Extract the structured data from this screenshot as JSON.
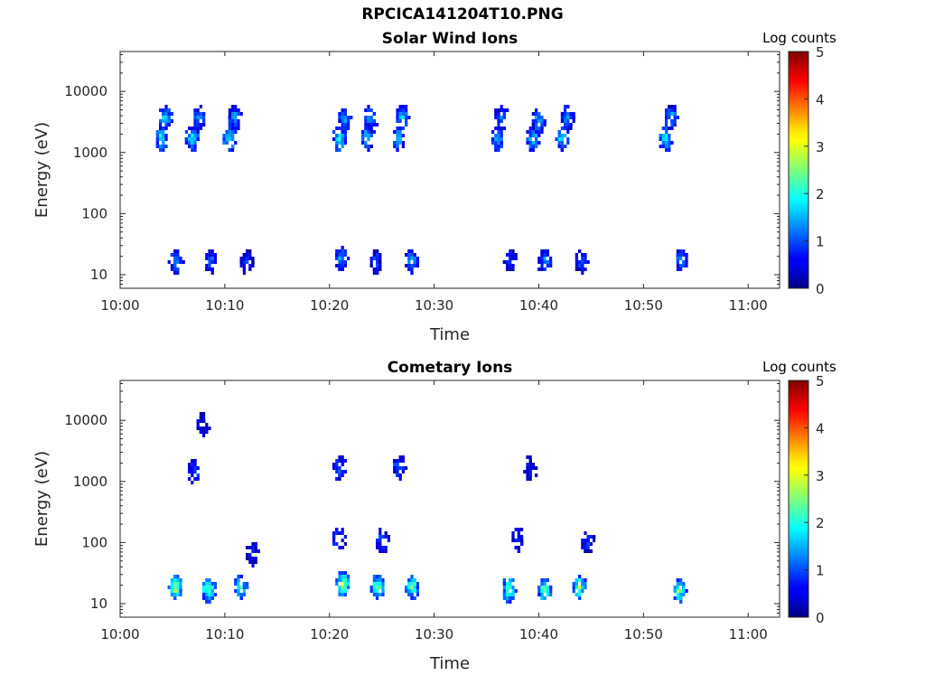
{
  "figure": {
    "title": "RPCICA141204T10.PNG"
  },
  "colorbar": {
    "label": "Log counts",
    "ticks": [
      "0",
      "1",
      "2",
      "3",
      "4",
      "5"
    ],
    "range": [
      0,
      5
    ],
    "colormap": "jet"
  },
  "chart_data": [
    {
      "type": "heatmap",
      "title": "Solar Wind Ions",
      "xlabel": "Time",
      "ylabel": "Energy (eV)",
      "yscale": "log",
      "ylim": [
        6,
        45000
      ],
      "xlim": [
        "10:00",
        "11:03"
      ],
      "xticks": [
        "10:00",
        "10:10",
        "10:20",
        "10:30",
        "10:40",
        "10:50",
        "11:00"
      ],
      "yticks": [
        "10",
        "100",
        "1000",
        "10000"
      ],
      "colorbar_label": "Log counts",
      "clim": [
        0,
        5
      ],
      "clusters": [
        {
          "t": 3.8,
          "e": 1800,
          "v": 2.2
        },
        {
          "t": 4.2,
          "e": 4000,
          "v": 1.8
        },
        {
          "t": 6.8,
          "e": 1800,
          "v": 2.0
        },
        {
          "t": 7.4,
          "e": 3800,
          "v": 1.6
        },
        {
          "t": 10.3,
          "e": 1800,
          "v": 2.0
        },
        {
          "t": 10.8,
          "e": 4000,
          "v": 1.7
        },
        {
          "t": 20.8,
          "e": 1800,
          "v": 2.4
        },
        {
          "t": 21.3,
          "e": 3500,
          "v": 1.6
        },
        {
          "t": 23.5,
          "e": 1800,
          "v": 1.9
        },
        {
          "t": 23.8,
          "e": 4000,
          "v": 1.6
        },
        {
          "t": 26.5,
          "e": 1800,
          "v": 2.0
        },
        {
          "t": 26.9,
          "e": 4000,
          "v": 1.7
        },
        {
          "t": 35.9,
          "e": 1800,
          "v": 1.8
        },
        {
          "t": 36.3,
          "e": 4000,
          "v": 1.3
        },
        {
          "t": 39.3,
          "e": 1800,
          "v": 1.9
        },
        {
          "t": 39.8,
          "e": 3500,
          "v": 1.6
        },
        {
          "t": 42.1,
          "e": 1800,
          "v": 1.9
        },
        {
          "t": 42.6,
          "e": 4000,
          "v": 1.6
        },
        {
          "t": 52.0,
          "e": 1800,
          "v": 2.0
        },
        {
          "t": 52.5,
          "e": 4000,
          "v": 1.6
        },
        {
          "t": 5.2,
          "e": 18,
          "v": 1.5
        },
        {
          "t": 8.5,
          "e": 18,
          "v": 1.2
        },
        {
          "t": 12.0,
          "e": 18,
          "v": 1.0
        },
        {
          "t": 21.0,
          "e": 20,
          "v": 1.5
        },
        {
          "t": 24.3,
          "e": 18,
          "v": 1.1
        },
        {
          "t": 27.7,
          "e": 18,
          "v": 1.5
        },
        {
          "t": 37.2,
          "e": 18,
          "v": 1.0
        },
        {
          "t": 40.5,
          "e": 18,
          "v": 1.5
        },
        {
          "t": 43.9,
          "e": 18,
          "v": 1.2
        },
        {
          "t": 53.5,
          "e": 18,
          "v": 1.5
        }
      ]
    },
    {
      "type": "heatmap",
      "title": "Cometary Ions",
      "xlabel": "Time",
      "ylabel": "Energy (eV)",
      "yscale": "log",
      "ylim": [
        6,
        45000
      ],
      "xlim": [
        "10:00",
        "11:03"
      ],
      "xticks": [
        "10:00",
        "10:10",
        "10:20",
        "10:30",
        "10:40",
        "10:50",
        "11:00"
      ],
      "yticks": [
        "10",
        "100",
        "1000",
        "10000"
      ],
      "colorbar_label": "Log counts",
      "clim": [
        0,
        5
      ],
      "clusters": [
        {
          "t": 5.2,
          "e": 20,
          "v": 3.2
        },
        {
          "t": 8.3,
          "e": 18,
          "v": 2.8
        },
        {
          "t": 11.4,
          "e": 20,
          "v": 2.5
        },
        {
          "t": 21.2,
          "e": 22,
          "v": 3.3
        },
        {
          "t": 24.5,
          "e": 20,
          "v": 2.8
        },
        {
          "t": 27.8,
          "e": 20,
          "v": 2.7
        },
        {
          "t": 37.0,
          "e": 18,
          "v": 2.8
        },
        {
          "t": 40.4,
          "e": 18,
          "v": 2.8
        },
        {
          "t": 43.7,
          "e": 20,
          "v": 3.0
        },
        {
          "t": 53.3,
          "e": 18,
          "v": 2.6
        },
        {
          "t": 20.8,
          "e": 120,
          "v": 1.2
        },
        {
          "t": 24.9,
          "e": 110,
          "v": 1.2
        },
        {
          "t": 37.8,
          "e": 120,
          "v": 1.0
        },
        {
          "t": 44.6,
          "e": 110,
          "v": 1.0
        },
        {
          "t": 12.5,
          "e": 70,
          "v": 0.9
        },
        {
          "t": 7.0,
          "e": 1600,
          "v": 1.2
        },
        {
          "t": 20.8,
          "e": 1700,
          "v": 1.3
        },
        {
          "t": 26.5,
          "e": 1800,
          "v": 1.2
        },
        {
          "t": 7.8,
          "e": 9000,
          "v": 0.7
        },
        {
          "t": 39.0,
          "e": 1700,
          "v": 0.7
        }
      ]
    }
  ]
}
